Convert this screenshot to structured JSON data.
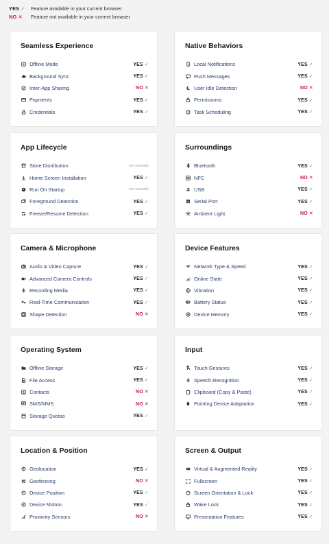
{
  "legend": [
    {
      "status": "YES",
      "mark": "✓",
      "type": "yes",
      "text": "Feature available in your current browser"
    },
    {
      "status": "NO",
      "mark": "✕",
      "type": "no",
      "text": "Feature not available in your current browser"
    }
  ],
  "colors": {
    "yes_mark": "#3aa66a",
    "no": "#c01b3a",
    "feature_text": "#2a3e6b",
    "not_testable": "#a5a5a5"
  },
  "cards": [
    {
      "title": "Seamless Experience",
      "features": [
        {
          "name": "Offline Mode",
          "icon": "offline-icon",
          "status": "YES",
          "mark": "✓",
          "type": "yes"
        },
        {
          "name": "Background Sync",
          "icon": "cloud-sync-icon",
          "status": "YES",
          "mark": "✓",
          "type": "yes"
        },
        {
          "name": "Inter-App Sharing",
          "icon": "share-icon",
          "status": "NO",
          "mark": "✕",
          "type": "no"
        },
        {
          "name": "Payments",
          "icon": "credit-card-icon",
          "status": "YES",
          "mark": "✓",
          "type": "yes"
        },
        {
          "name": "Credentials",
          "icon": "lock-icon",
          "status": "YES",
          "mark": "✓",
          "type": "yes"
        }
      ]
    },
    {
      "title": "Native Behaviors",
      "features": [
        {
          "name": "Local Notifications",
          "icon": "phone-icon",
          "status": "YES",
          "mark": "✓",
          "type": "yes"
        },
        {
          "name": "Push Messages",
          "icon": "message-icon",
          "status": "YES",
          "mark": "✓",
          "type": "yes"
        },
        {
          "name": "User Idle Detection",
          "icon": "moon-icon",
          "status": "NO",
          "mark": "✕",
          "type": "no"
        },
        {
          "name": "Permissions",
          "icon": "lock-icon",
          "status": "YES",
          "mark": "✓",
          "type": "yes"
        },
        {
          "name": "Task Scheduling",
          "icon": "clock-icon",
          "status": "YES",
          "mark": "✓",
          "type": "yes"
        }
      ]
    },
    {
      "title": "App Lifecycle",
      "features": [
        {
          "name": "Store Distribution",
          "icon": "store-icon",
          "status": "not testable",
          "mark": "",
          "type": "nt"
        },
        {
          "name": "Home Screen Installation",
          "icon": "download-icon",
          "status": "YES",
          "mark": "✓",
          "type": "yes"
        },
        {
          "name": "Run On Startup",
          "icon": "startup-icon",
          "status": "not testable",
          "mark": "",
          "type": "nt"
        },
        {
          "name": "Foreground Detection",
          "icon": "layers-icon",
          "status": "YES",
          "mark": "✓",
          "type": "yes"
        },
        {
          "name": "Freeze/Resume Detection",
          "icon": "refresh-icon",
          "status": "YES",
          "mark": "✓",
          "type": "yes"
        }
      ]
    },
    {
      "title": "Surroundings",
      "features": [
        {
          "name": "Bluetooth",
          "icon": "bluetooth-icon",
          "status": "YES",
          "mark": "✓",
          "type": "yes"
        },
        {
          "name": "NFC",
          "icon": "nfc-icon",
          "status": "NO",
          "mark": "✕",
          "type": "no"
        },
        {
          "name": "USB",
          "icon": "usb-icon",
          "status": "YES",
          "mark": "✓",
          "type": "yes"
        },
        {
          "name": "Serial Port",
          "icon": "serial-icon",
          "status": "YES",
          "mark": "✓",
          "type": "yes"
        },
        {
          "name": "Ambient Light",
          "icon": "sun-icon",
          "status": "NO",
          "mark": "✕",
          "type": "no"
        }
      ]
    },
    {
      "title": "Camera & Microphone",
      "features": [
        {
          "name": "Audio & Video Capture",
          "icon": "camera-icon",
          "status": "YES",
          "mark": "✓",
          "type": "yes"
        },
        {
          "name": "Advanced Camera Controls",
          "icon": "video-icon",
          "status": "YES",
          "mark": "✓",
          "type": "yes"
        },
        {
          "name": "Recording Media",
          "icon": "microphone-icon",
          "status": "YES",
          "mark": "✓",
          "type": "yes"
        },
        {
          "name": "Real-Time Communication",
          "icon": "rtc-icon",
          "status": "YES",
          "mark": "✓",
          "type": "yes"
        },
        {
          "name": "Shape Detection",
          "icon": "scan-icon",
          "status": "NO",
          "mark": "✕",
          "type": "no"
        }
      ]
    },
    {
      "title": "Device Features",
      "features": [
        {
          "name": "Network Type & Speed",
          "icon": "wifi-icon",
          "status": "YES",
          "mark": "✓",
          "type": "yes"
        },
        {
          "name": "Online State",
          "icon": "signal-icon",
          "status": "YES",
          "mark": "✓",
          "type": "yes"
        },
        {
          "name": "Vibration",
          "icon": "vibration-icon",
          "status": "YES",
          "mark": "✓",
          "type": "yes"
        },
        {
          "name": "Battery Status",
          "icon": "battery-icon",
          "status": "YES",
          "mark": "✓",
          "type": "yes"
        },
        {
          "name": "Device Memory",
          "icon": "memory-icon",
          "status": "YES",
          "mark": "✓",
          "type": "yes"
        }
      ]
    },
    {
      "title": "Operating System",
      "features": [
        {
          "name": "Offline Storage",
          "icon": "folder-icon",
          "status": "YES",
          "mark": "✓",
          "type": "yes"
        },
        {
          "name": "File Access",
          "icon": "file-icon",
          "status": "YES",
          "mark": "✓",
          "type": "yes"
        },
        {
          "name": "Contacts",
          "icon": "contacts-icon",
          "status": "NO",
          "mark": "✕",
          "type": "no"
        },
        {
          "name": "SMS/MMS",
          "icon": "sms-icon",
          "status": "NO",
          "mark": "✕",
          "type": "no"
        },
        {
          "name": "Storage Quotas",
          "icon": "database-icon",
          "status": "YES",
          "mark": "✓",
          "type": "yes"
        }
      ]
    },
    {
      "title": "Input",
      "features": [
        {
          "name": "Touch Gestures",
          "icon": "touch-icon",
          "status": "YES",
          "mark": "✓",
          "type": "yes"
        },
        {
          "name": "Speech Recognition",
          "icon": "microphone-icon",
          "status": "YES",
          "mark": "✓",
          "type": "yes"
        },
        {
          "name": "Clipboard (Copy & Paste)",
          "icon": "clipboard-icon",
          "status": "YES",
          "mark": "✓",
          "type": "yes"
        },
        {
          "name": "Pointing Device Adaptation",
          "icon": "mouse-icon",
          "status": "YES",
          "mark": "✓",
          "type": "yes"
        }
      ]
    },
    {
      "title": "Location & Position",
      "features": [
        {
          "name": "Geolocation",
          "icon": "crosshair-icon",
          "status": "YES",
          "mark": "✓",
          "type": "yes"
        },
        {
          "name": "Geofencing",
          "icon": "globe-icon",
          "status": "NO",
          "mark": "✕",
          "type": "no"
        },
        {
          "name": "Device Position",
          "icon": "rotate-icon",
          "status": "YES",
          "mark": "✓",
          "type": "yes"
        },
        {
          "name": "Device Motion",
          "icon": "compass-icon",
          "status": "YES",
          "mark": "✓",
          "type": "yes"
        },
        {
          "name": "Proximity Sensors",
          "icon": "proximity-icon",
          "status": "NO",
          "mark": "✕",
          "type": "no"
        }
      ]
    },
    {
      "title": "Screen & Output",
      "features": [
        {
          "name": "Virtual & Augmented Reality",
          "icon": "vr-icon",
          "status": "YES",
          "mark": "✓",
          "type": "yes"
        },
        {
          "name": "Fullscreen",
          "icon": "fullscreen-icon",
          "status": "YES",
          "mark": "✓",
          "type": "yes"
        },
        {
          "name": "Screen Orientation & Lock",
          "icon": "orientation-icon",
          "status": "YES",
          "mark": "✓",
          "type": "yes"
        },
        {
          "name": "Wake Lock",
          "icon": "lock-icon",
          "status": "YES",
          "mark": "✓",
          "type": "yes"
        },
        {
          "name": "Presentation Features",
          "icon": "monitor-icon",
          "status": "YES",
          "mark": "✓",
          "type": "yes"
        }
      ]
    }
  ]
}
